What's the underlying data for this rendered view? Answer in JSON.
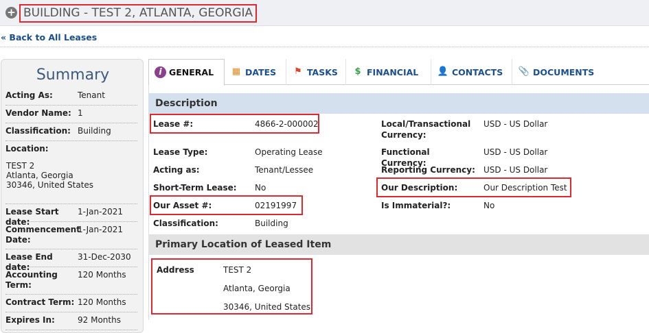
{
  "header": {
    "title": "BUILDING - TEST 2, ATLANTA, GEORGIA",
    "back_link": "« Back to All Leases"
  },
  "summary": {
    "title": "Summary",
    "rows": [
      {
        "label": "Acting As:",
        "value": "Tenant"
      },
      {
        "label": "Vendor Name:",
        "value": "1"
      },
      {
        "label": "Classification:",
        "value": "Building"
      },
      {
        "label": "Location:",
        "value": ""
      },
      {
        "label": "Lease Start date:",
        "value": "1-Jan-2021"
      },
      {
        "label": "Commencement Date:",
        "value": "1-Jan-2021"
      },
      {
        "label": "Lease End date:",
        "value": "31-Dec-2030"
      },
      {
        "label": "Accounting Term:",
        "value": "120 Months"
      },
      {
        "label": "Contract Term:",
        "value": "120 Months"
      },
      {
        "label": "Expires In:",
        "value": "92 Months"
      }
    ],
    "location_lines": [
      "TEST 2",
      "Atlanta, Georgia",
      "30346, United States"
    ]
  },
  "tabs": [
    {
      "label": "GENERAL",
      "icon": "info-icon",
      "active": true
    },
    {
      "label": "DATES",
      "icon": "calendar-icon"
    },
    {
      "label": "TASKS",
      "icon": "flag-icon"
    },
    {
      "label": "FINANCIAL",
      "icon": "money-tag-icon"
    },
    {
      "label": "CONTACTS",
      "icon": "person-icon"
    },
    {
      "label": "DOCUMENTS",
      "icon": "paperclip-icon"
    }
  ],
  "description": {
    "title": "Description",
    "left": [
      {
        "label": "Lease #:",
        "value": "4866-2-000002"
      },
      {
        "label": "Lease Type:",
        "value": "Operating Lease"
      },
      {
        "label": "Acting as:",
        "value": "Tenant/Lessee"
      },
      {
        "label": "Short-Term Lease:",
        "value": "No"
      },
      {
        "label": "Our Asset #:",
        "value": "02191997"
      },
      {
        "label": "Classification:",
        "value": "Building"
      }
    ],
    "right": [
      {
        "label": "Local/Transactional Currency:",
        "value": "USD - US Dollar"
      },
      {
        "label": "Functional Currency:",
        "value": "USD - US Dollar"
      },
      {
        "label": "Reporting Currency:",
        "value": "USD - US Dollar"
      },
      {
        "label": "Our Description:",
        "value": "Our Description Test"
      },
      {
        "label": "Is Immaterial?:",
        "value": "No"
      }
    ]
  },
  "location": {
    "title": "Primary Location of Leased Item",
    "label": "Address",
    "lines": [
      "TEST 2",
      "Atlanta, Georgia",
      "30346, United States"
    ]
  },
  "colors": {
    "link": "#1a4f8f",
    "highlight": "#e0282e",
    "section_header": "#d5e0ef"
  }
}
